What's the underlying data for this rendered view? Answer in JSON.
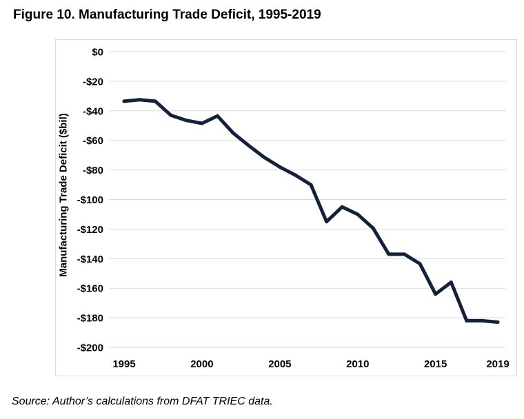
{
  "figure": {
    "title": "Figure 10. Manufacturing Trade Deficit, 1995-2019",
    "source": "Source: Author’s calculations from DFAT TRIEC data."
  },
  "chart_data": {
    "type": "line",
    "title": "Figure 10. Manufacturing Trade Deficit, 1995-2019",
    "xlabel": "",
    "ylabel": "Manufacturing Trade Deficit ($bil)",
    "xlim": [
      1995,
      2019
    ],
    "ylim": [
      -200,
      0
    ],
    "grid": true,
    "legend": "none",
    "line_color": "#14213a",
    "x_ticks": [
      1995,
      2000,
      2005,
      2010,
      2015,
      2019
    ],
    "x_tick_labels": [
      "1995",
      "2000",
      "2005",
      "2010",
      "2015",
      "2019"
    ],
    "y_ticks": [
      0,
      -20,
      -40,
      -60,
      -80,
      -100,
      -120,
      -140,
      -160,
      -180,
      -200
    ],
    "y_tick_labels": [
      "$0",
      "-$20",
      "-$40",
      "-$60",
      "-$80",
      "-$100",
      "-$120",
      "-$140",
      "-$160",
      "-$180",
      "-$200"
    ],
    "series": [
      {
        "name": "Manufacturing Trade Deficit",
        "x": [
          1995,
          1996,
          1997,
          1998,
          1999,
          2000,
          2001,
          2002,
          2003,
          2004,
          2005,
          2006,
          2007,
          2008,
          2009,
          2010,
          2011,
          2012,
          2013,
          2014,
          2015,
          2016,
          2017,
          2018,
          2019
        ],
        "values": [
          -33.5,
          -32.5,
          -33.5,
          -43,
          -46.5,
          -48.5,
          -43.5,
          -55,
          -63.5,
          -71.5,
          -78,
          -83.5,
          -90,
          -115,
          -105,
          -110,
          -119.5,
          -137,
          -137,
          -143.5,
          -164,
          -156,
          -182,
          -182,
          -183
        ]
      }
    ]
  }
}
